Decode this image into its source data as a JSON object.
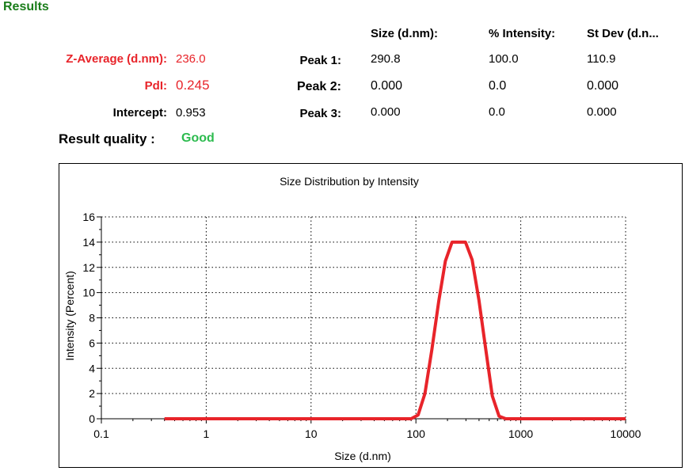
{
  "results": {
    "title": "Results",
    "z_average": {
      "label": "Z-Average (d.nm):",
      "value": "236.0"
    },
    "pdi": {
      "label": "PdI:",
      "value": "0.245"
    },
    "intercept": {
      "label": "Intercept:",
      "value": "0.953"
    },
    "quality": {
      "label": "Result quality :",
      "value": "Good"
    },
    "colors": {
      "title": "#1a7d1a",
      "highlight": "#e8242a",
      "good": "#2dbb4f"
    }
  },
  "peaks": {
    "headers": [
      "Size (d.nm):",
      "% Intensity:",
      "St Dev (d.n..."
    ],
    "rows": [
      {
        "label": "Peak 1:",
        "size": "290.8",
        "intensity": "100.0",
        "stdev": "110.9"
      },
      {
        "label": "Peak 2:",
        "size": "0.000",
        "intensity": "0.0",
        "stdev": "0.000"
      },
      {
        "label": "Peak 3:",
        "size": "0.000",
        "intensity": "0.0",
        "stdev": "0.000"
      }
    ]
  },
  "chart_data": {
    "type": "line",
    "title": "Size Distribution by Intensity",
    "xlabel": "Size (d.nm)",
    "ylabel": "Intensity (Percent)",
    "x_scale": "log",
    "xlim": [
      0.1,
      10000
    ],
    "ylim": [
      0,
      16
    ],
    "x_ticks": [
      0.1,
      1,
      10,
      100,
      1000,
      10000
    ],
    "x_tick_labels": [
      "0.1",
      "1",
      "10",
      "100",
      "1000",
      "10000"
    ],
    "y_ticks": [
      0,
      2,
      4,
      6,
      8,
      10,
      12,
      14,
      16
    ],
    "y_tick_labels": [
      "0",
      "2",
      "4",
      "6",
      "8",
      "10",
      "12",
      "14",
      "16"
    ],
    "grid": true,
    "line_color": "#e8242a",
    "series": [
      {
        "x": [
          0.4,
          1,
          10,
          90,
          105,
          122,
          142,
          165,
          191,
          221,
          256,
          297,
          344,
          399,
          462,
          536,
          621,
          720,
          1000,
          10000
        ],
        "values": [
          0,
          0,
          0,
          0,
          0.3,
          2.0,
          5.5,
          9.3,
          12.5,
          14.0,
          14.0,
          14.0,
          12.6,
          9.4,
          5.6,
          1.8,
          0.2,
          0,
          0,
          0
        ]
      }
    ]
  }
}
